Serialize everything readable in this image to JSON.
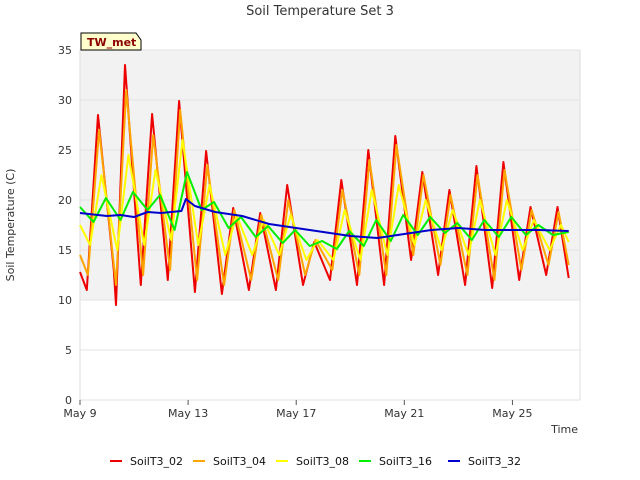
{
  "chart_data": {
    "type": "line",
    "title": "Soil Temperature Set 3",
    "xlabel": "Time",
    "ylabel": "Soil Temperature (C)",
    "badge": "TW_met",
    "ylim": [
      0,
      35
    ],
    "yticks": [
      0,
      5,
      10,
      15,
      20,
      25,
      30,
      35
    ],
    "xlim": [
      "2024-05-09",
      "2024-05-27T12:00"
    ],
    "xticks": [
      {
        "date": "2024-05-09",
        "label": "May 9"
      },
      {
        "date": "2024-05-13",
        "label": "May 13"
      },
      {
        "date": "2024-05-17",
        "label": "May 17"
      },
      {
        "date": "2024-05-21",
        "label": "May 21"
      },
      {
        "date": "2024-05-25",
        "label": "May 25"
      }
    ],
    "grid": "horizontal bands",
    "legend_position": "bottom",
    "colors": {
      "SoilT3_02": "#ee0000",
      "SoilT3_04": "#ffa500",
      "SoilT3_08": "#ffff00",
      "SoilT3_16": "#00ee00",
      "SoilT3_32": "#0000cc",
      "band": "#f2f2f2",
      "badge_fill": "#ffffcc"
    },
    "series": [
      {
        "name": "SoilT3_02",
        "points": [
          [
            "2024-05-09T00:00",
            12.8
          ],
          [
            "2024-05-09T06:00",
            11.0
          ],
          [
            "2024-05-09T16:00",
            28.5
          ],
          [
            "2024-05-10T06:00",
            13.0
          ],
          [
            "2024-05-10T08:00",
            9.5
          ],
          [
            "2024-05-10T16:00",
            33.5
          ],
          [
            "2024-05-11T06:00",
            11.5
          ],
          [
            "2024-05-11T16:00",
            28.6
          ],
          [
            "2024-05-12T06:00",
            12.0
          ],
          [
            "2024-05-12T16:00",
            29.9
          ],
          [
            "2024-05-13T06:00",
            10.8
          ],
          [
            "2024-05-13T16:00",
            24.9
          ],
          [
            "2024-05-14T06:00",
            10.6
          ],
          [
            "2024-05-14T16:00",
            19.2
          ],
          [
            "2024-05-15T06:00",
            11.0
          ],
          [
            "2024-05-15T16:00",
            18.7
          ],
          [
            "2024-05-16T06:00",
            11.0
          ],
          [
            "2024-05-16T16:00",
            21.5
          ],
          [
            "2024-05-17T06:00",
            11.5
          ],
          [
            "2024-05-17T16:00",
            15.8
          ],
          [
            "2024-05-18T06:00",
            12.0
          ],
          [
            "2024-05-18T16:00",
            22.0
          ],
          [
            "2024-05-19T06:00",
            11.5
          ],
          [
            "2024-05-19T16:00",
            25.0
          ],
          [
            "2024-05-20T06:00",
            11.5
          ],
          [
            "2024-05-20T16:00",
            26.4
          ],
          [
            "2024-05-21T06:00",
            14.0
          ],
          [
            "2024-05-21T16:00",
            22.8
          ],
          [
            "2024-05-22T06:00",
            12.5
          ],
          [
            "2024-05-22T16:00",
            21.0
          ],
          [
            "2024-05-23T06:00",
            11.5
          ],
          [
            "2024-05-23T16:00",
            23.4
          ],
          [
            "2024-05-24T06:00",
            11.2
          ],
          [
            "2024-05-24T16:00",
            23.8
          ],
          [
            "2024-05-25T06:00",
            12.0
          ],
          [
            "2024-05-25T16:00",
            19.3
          ],
          [
            "2024-05-26T06:00",
            12.5
          ],
          [
            "2024-05-26T16:00",
            19.3
          ],
          [
            "2024-05-27T02:00",
            12.2
          ]
        ]
      },
      {
        "name": "SoilT3_04",
        "points": [
          [
            "2024-05-09T00:00",
            14.5
          ],
          [
            "2024-05-09T07:00",
            12.5
          ],
          [
            "2024-05-09T17:00",
            27.0
          ],
          [
            "2024-05-10T08:00",
            11.5
          ],
          [
            "2024-05-10T17:00",
            31.0
          ],
          [
            "2024-05-11T08:00",
            12.5
          ],
          [
            "2024-05-11T17:00",
            26.5
          ],
          [
            "2024-05-12T08:00",
            13.0
          ],
          [
            "2024-05-12T17:00",
            29.0
          ],
          [
            "2024-05-13T08:00",
            12.0
          ],
          [
            "2024-05-13T17:00",
            23.5
          ],
          [
            "2024-05-14T08:00",
            11.5
          ],
          [
            "2024-05-14T17:00",
            19.0
          ],
          [
            "2024-05-15T08:00",
            12.0
          ],
          [
            "2024-05-15T17:00",
            18.5
          ],
          [
            "2024-05-16T08:00",
            12.0
          ],
          [
            "2024-05-16T17:00",
            20.0
          ],
          [
            "2024-05-17T08:00",
            12.5
          ],
          [
            "2024-05-17T17:00",
            16.0
          ],
          [
            "2024-05-18T08:00",
            13.0
          ],
          [
            "2024-05-18T17:00",
            21.0
          ],
          [
            "2024-05-19T08:00",
            12.5
          ],
          [
            "2024-05-19T17:00",
            24.0
          ],
          [
            "2024-05-20T08:00",
            12.5
          ],
          [
            "2024-05-20T17:00",
            25.5
          ],
          [
            "2024-05-21T08:00",
            14.5
          ],
          [
            "2024-05-21T17:00",
            22.5
          ],
          [
            "2024-05-22T08:00",
            13.5
          ],
          [
            "2024-05-22T17:00",
            20.5
          ],
          [
            "2024-05-23T08:00",
            12.5
          ],
          [
            "2024-05-23T17:00",
            22.5
          ],
          [
            "2024-05-24T08:00",
            12.0
          ],
          [
            "2024-05-24T17:00",
            23.0
          ],
          [
            "2024-05-25T08:00",
            13.0
          ],
          [
            "2024-05-25T17:00",
            19.0
          ],
          [
            "2024-05-26T08:00",
            13.5
          ],
          [
            "2024-05-26T17:00",
            18.8
          ],
          [
            "2024-05-27T02:00",
            13.5
          ]
        ]
      },
      {
        "name": "SoilT3_08",
        "points": [
          [
            "2024-05-09T00:00",
            17.5
          ],
          [
            "2024-05-09T09:00",
            15.5
          ],
          [
            "2024-05-09T19:00",
            22.5
          ],
          [
            "2024-05-10T09:00",
            15.0
          ],
          [
            "2024-05-10T19:00",
            24.5
          ],
          [
            "2024-05-11T09:00",
            15.5
          ],
          [
            "2024-05-11T19:00",
            23.0
          ],
          [
            "2024-05-12T09:00",
            16.0
          ],
          [
            "2024-05-12T19:00",
            26.0
          ],
          [
            "2024-05-13T09:00",
            15.5
          ],
          [
            "2024-05-13T19:00",
            21.5
          ],
          [
            "2024-05-14T09:00",
            14.5
          ],
          [
            "2024-05-14T19:00",
            18.5
          ],
          [
            "2024-05-15T09:00",
            14.5
          ],
          [
            "2024-05-15T19:00",
            18.0
          ],
          [
            "2024-05-16T09:00",
            14.5
          ],
          [
            "2024-05-16T19:00",
            18.5
          ],
          [
            "2024-05-17T09:00",
            14.0
          ],
          [
            "2024-05-17T19:00",
            16.0
          ],
          [
            "2024-05-18T09:00",
            14.0
          ],
          [
            "2024-05-18T19:00",
            19.0
          ],
          [
            "2024-05-19T09:00",
            14.0
          ],
          [
            "2024-05-19T19:00",
            21.0
          ],
          [
            "2024-05-20T09:00",
            14.5
          ],
          [
            "2024-05-20T19:00",
            21.5
          ],
          [
            "2024-05-21T09:00",
            15.5
          ],
          [
            "2024-05-21T19:00",
            20.0
          ],
          [
            "2024-05-22T09:00",
            15.0
          ],
          [
            "2024-05-22T19:00",
            19.0
          ],
          [
            "2024-05-23T09:00",
            14.5
          ],
          [
            "2024-05-23T19:00",
            20.0
          ],
          [
            "2024-05-24T09:00",
            14.5
          ],
          [
            "2024-05-24T19:00",
            20.0
          ],
          [
            "2024-05-25T09:00",
            15.0
          ],
          [
            "2024-05-25T19:00",
            18.0
          ],
          [
            "2024-05-26T09:00",
            15.0
          ],
          [
            "2024-05-26T19:00",
            17.5
          ],
          [
            "2024-05-27T02:00",
            15.8
          ]
        ]
      },
      {
        "name": "SoilT3_16",
        "points": [
          [
            "2024-05-09T00:00",
            19.3
          ],
          [
            "2024-05-09T12:00",
            17.8
          ],
          [
            "2024-05-09T23:00",
            20.2
          ],
          [
            "2024-05-10T12:00",
            18.0
          ],
          [
            "2024-05-10T23:00",
            20.8
          ],
          [
            "2024-05-11T12:00",
            19.0
          ],
          [
            "2024-05-11T23:00",
            20.5
          ],
          [
            "2024-05-12T12:00",
            17.0
          ],
          [
            "2024-05-12T23:00",
            22.8
          ],
          [
            "2024-05-13T12:00",
            19.0
          ],
          [
            "2024-05-13T23:00",
            19.8
          ],
          [
            "2024-05-14T12:00",
            17.2
          ],
          [
            "2024-05-14T23:00",
            18.3
          ],
          [
            "2024-05-15T12:00",
            16.3
          ],
          [
            "2024-05-15T23:00",
            17.4
          ],
          [
            "2024-05-16T12:00",
            15.7
          ],
          [
            "2024-05-16T23:00",
            17.0
          ],
          [
            "2024-05-17T12:00",
            15.4
          ],
          [
            "2024-05-17T23:00",
            15.9
          ],
          [
            "2024-05-18T12:00",
            15.1
          ],
          [
            "2024-05-18T23:00",
            16.9
          ],
          [
            "2024-05-19T12:00",
            15.4
          ],
          [
            "2024-05-19T23:00",
            18.0
          ],
          [
            "2024-05-20T12:00",
            15.9
          ],
          [
            "2024-05-20T23:00",
            18.5
          ],
          [
            "2024-05-21T12:00",
            16.5
          ],
          [
            "2024-05-21T23:00",
            18.3
          ],
          [
            "2024-05-22T12:00",
            16.7
          ],
          [
            "2024-05-22T23:00",
            17.7
          ],
          [
            "2024-05-23T12:00",
            16.0
          ],
          [
            "2024-05-23T23:00",
            18.0
          ],
          [
            "2024-05-24T12:00",
            16.3
          ],
          [
            "2024-05-24T23:00",
            18.3
          ],
          [
            "2024-05-25T12:00",
            16.5
          ],
          [
            "2024-05-25T23:00",
            17.5
          ],
          [
            "2024-05-26T12:00",
            16.5
          ],
          [
            "2024-05-27T02:00",
            16.8
          ]
        ]
      },
      {
        "name": "SoilT3_32",
        "points": [
          [
            "2024-05-09T00:00",
            18.7
          ],
          [
            "2024-05-10T00:00",
            18.4
          ],
          [
            "2024-05-10T12:00",
            18.5
          ],
          [
            "2024-05-11T00:00",
            18.3
          ],
          [
            "2024-05-11T12:00",
            18.8
          ],
          [
            "2024-05-12T00:00",
            18.7
          ],
          [
            "2024-05-12T18:00",
            18.9
          ],
          [
            "2024-05-12T22:00",
            20.1
          ],
          [
            "2024-05-13T06:00",
            19.4
          ],
          [
            "2024-05-14T00:00",
            18.8
          ],
          [
            "2024-05-15T00:00",
            18.4
          ],
          [
            "2024-05-16T00:00",
            17.6
          ],
          [
            "2024-05-17T00:00",
            17.2
          ],
          [
            "2024-05-18T00:00",
            16.8
          ],
          [
            "2024-05-19T00:00",
            16.4
          ],
          [
            "2024-05-20T00:00",
            16.2
          ],
          [
            "2024-05-21T00:00",
            16.6
          ],
          [
            "2024-05-22T00:00",
            17.0
          ],
          [
            "2024-05-23T00:00",
            17.2
          ],
          [
            "2024-05-24T00:00",
            17.0
          ],
          [
            "2024-05-25T00:00",
            17.0
          ],
          [
            "2024-05-26T00:00",
            17.0
          ],
          [
            "2024-05-27T02:00",
            16.9
          ]
        ]
      }
    ]
  }
}
